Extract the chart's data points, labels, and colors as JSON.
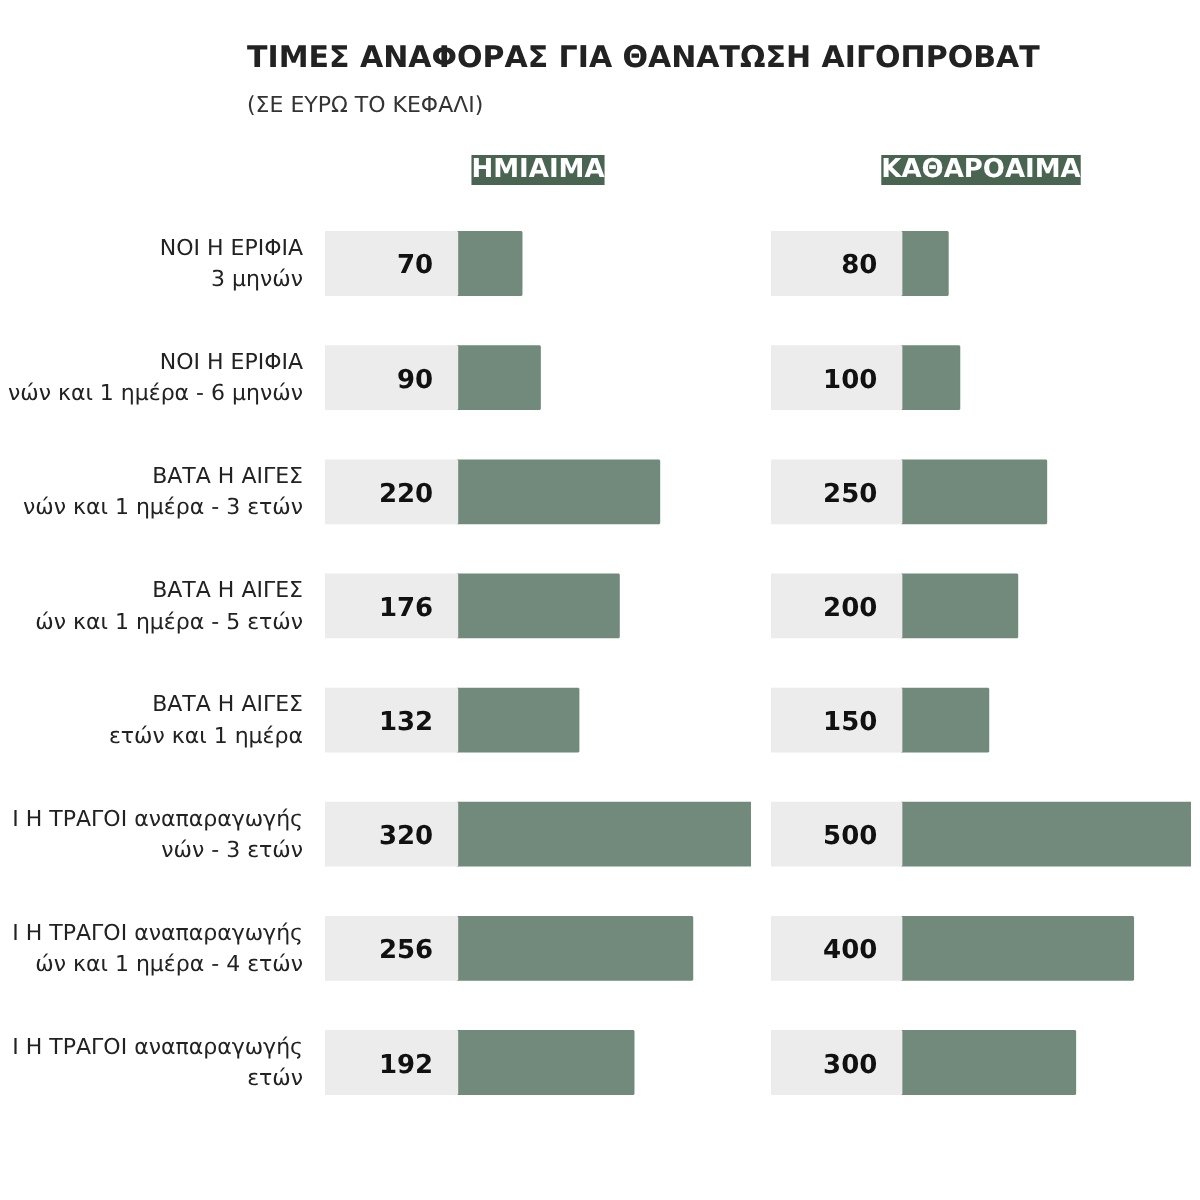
{
  "chart_data": [
    {
      "type": "bar",
      "orientation": "horizontal",
      "title": "ΤΙΜΕΣ ΑΝΑΦΟΡΑΣ ΓΙΑ ΘΑΝΑΤΩΣΗ ΑΙΓΟΠΡΟΒΑΤ",
      "subtitle": "(ΣΕ ΕΥΡΩ ΤΟ ΚΕΦΑΛΙ)",
      "categories": [
        "ΝΟΙ Η ΕΡΙΦΙΑ\n3 μηνών",
        "ΝΟΙ Η ΕΡΙΦΙΑ\nνών και 1 ημέρα - 6 μηνών",
        "ΒΑΤΑ Η ΑΙΓΕΣ\nνών και 1 ημέρα - 3 ετών",
        "ΒΑΤΑ Η ΑΙΓΕΣ\nών και 1 ημέρα - 5 ετών",
        "ΒΑΤΑ Η ΑΙΓΕΣ\nετών και 1 ημέρα",
        "Ι Η ΤΡΑΓΟΙ αναπαραγωγής\nνών - 3 ετών",
        "Ι Η ΤΡΑΓΟΙ αναπαραγωγής\nών και 1 ημέρα - 4 ετών",
        "Ι Η ΤΡΑΓΟΙ αναπαραγωγής\nετών"
      ],
      "series": [
        {
          "name": "ΗΜΙΑΙΜΑ",
          "color": "#718a7c",
          "values": [
            70,
            90,
            220,
            176,
            132,
            320,
            256,
            192
          ]
        }
      ],
      "xlim": [
        0,
        320
      ],
      "data_labels": true,
      "tick_labels": "y"
    },
    {
      "type": "bar",
      "orientation": "horizontal",
      "series": [
        {
          "name": "ΚΑΘΑΡΟΑΙΜΑ",
          "color": "#718a7c",
          "values": [
            80,
            100,
            250,
            200,
            150,
            500,
            400,
            300
          ]
        }
      ],
      "xlim": [
        0,
        500
      ],
      "data_labels": true,
      "tick_labels": false
    }
  ]
}
